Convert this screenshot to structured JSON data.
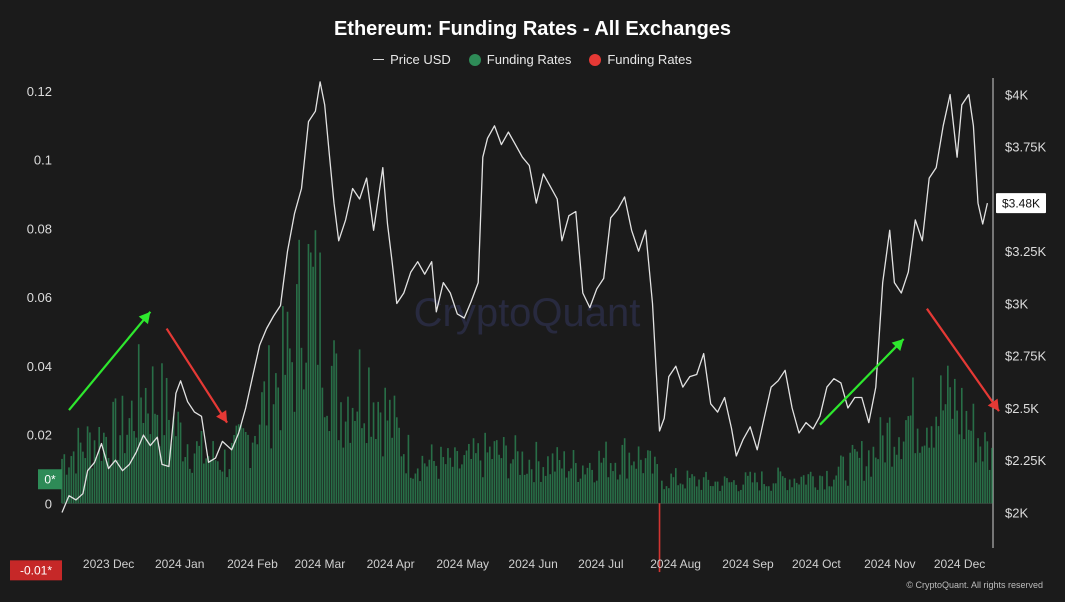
{
  "chart_data": {
    "type": "bar+line",
    "title": "Ethereum: Funding Rates - All Exchanges",
    "legend": [
      {
        "label": "Price USD",
        "kind": "line",
        "color": "#d9d9d9"
      },
      {
        "label": "Funding Rates",
        "kind": "dot",
        "color": "#2e8b57"
      },
      {
        "label": "Funding Rates",
        "kind": "dot",
        "color": "#e53935"
      }
    ],
    "x_axis": {
      "range": [
        "2023-11-22",
        "2024-12-26"
      ],
      "ticks": [
        {
          "date": "2023-12-01",
          "label": "2023 Dec"
        },
        {
          "date": "2024-01-01",
          "label": "2024 Jan"
        },
        {
          "date": "2024-02-01",
          "label": "2024 Feb"
        },
        {
          "date": "2024-03-01",
          "label": "2024 Mar"
        },
        {
          "date": "2024-04-01",
          "label": "2024 Apr"
        },
        {
          "date": "2024-05-01",
          "label": "2024 May"
        },
        {
          "date": "2024-06-01",
          "label": "2024 Jun"
        },
        {
          "date": "2024-07-01",
          "label": "2024 Jul"
        },
        {
          "date": "2024-08-01",
          "label": "2024 Aug"
        },
        {
          "date": "2024-09-01",
          "label": "2024 Sep"
        },
        {
          "date": "2024-10-01",
          "label": "2024 Oct"
        },
        {
          "date": "2024-11-01",
          "label": "2024 Nov"
        },
        {
          "date": "2024-12-01",
          "label": "2024 Dec"
        }
      ]
    },
    "y_left": {
      "range": [
        -0.013,
        0.122
      ],
      "ticks": [
        {
          "value": 0.12,
          "label": "0.12"
        },
        {
          "value": 0.1,
          "label": "0.1"
        },
        {
          "value": 0.08,
          "label": "0.08"
        },
        {
          "value": 0.06,
          "label": "0.06"
        },
        {
          "value": 0.04,
          "label": "0.04"
        },
        {
          "value": 0.02,
          "label": "0.02"
        },
        {
          "value": 0,
          "label": "0"
        }
      ],
      "badges": [
        {
          "value": 0.007,
          "label": "0*",
          "color": "#2e8b57"
        },
        {
          "value": -0.0195,
          "label": "-0.01*",
          "color": "#c62828"
        }
      ]
    },
    "y_right": {
      "range": [
        1830,
        4050
      ],
      "ticks": [
        {
          "value": 4000,
          "label": "$4K"
        },
        {
          "value": 3750,
          "label": "$3.75K"
        },
        {
          "value": 3500,
          "label": "$3.5K"
        },
        {
          "value": 3250,
          "label": "$3.25K"
        },
        {
          "value": 3000,
          "label": "$3K"
        },
        {
          "value": 2750,
          "label": "$2.75K"
        },
        {
          "value": 2500,
          "label": "$2.5K"
        },
        {
          "value": 2250,
          "label": "$2.25K"
        },
        {
          "value": 2000,
          "label": "$2K"
        }
      ],
      "current_price_label": "$3.48K",
      "current_price_value": 3480
    },
    "price_series": {
      "name": "Price USD",
      "points": [
        [
          "2023-11-22",
          2000
        ],
        [
          "2023-11-25",
          2080
        ],
        [
          "2023-11-28",
          2060
        ],
        [
          "2023-12-01",
          2090
        ],
        [
          "2023-12-03",
          2200
        ],
        [
          "2023-12-06",
          2240
        ],
        [
          "2023-12-09",
          2330
        ],
        [
          "2023-12-12",
          2210
        ],
        [
          "2023-12-15",
          2250
        ],
        [
          "2023-12-18",
          2200
        ],
        [
          "2023-12-21",
          2230
        ],
        [
          "2023-12-24",
          2290
        ],
        [
          "2023-12-27",
          2370
        ],
        [
          "2023-12-30",
          2320
        ],
        [
          "2024-01-02",
          2360
        ],
        [
          "2024-01-04",
          2230
        ],
        [
          "2024-01-07",
          2220
        ],
        [
          "2024-01-10",
          2570
        ],
        [
          "2024-01-12",
          2630
        ],
        [
          "2024-01-15",
          2530
        ],
        [
          "2024-01-18",
          2480
        ],
        [
          "2024-01-21",
          2460
        ],
        [
          "2024-01-24",
          2240
        ],
        [
          "2024-01-27",
          2260
        ],
        [
          "2024-01-30",
          2340
        ],
        [
          "2024-02-03",
          2300
        ],
        [
          "2024-02-06",
          2380
        ],
        [
          "2024-02-09",
          2500
        ],
        [
          "2024-02-12",
          2650
        ],
        [
          "2024-02-15",
          2800
        ],
        [
          "2024-02-18",
          2880
        ],
        [
          "2024-02-21",
          2940
        ],
        [
          "2024-02-24",
          2990
        ],
        [
          "2024-02-27",
          3250
        ],
        [
          "2024-03-01",
          3430
        ],
        [
          "2024-03-04",
          3550
        ],
        [
          "2024-03-07",
          3870
        ],
        [
          "2024-03-10",
          3920
        ],
        [
          "2024-03-12",
          4060
        ],
        [
          "2024-03-14",
          3950
        ],
        [
          "2024-03-16",
          3710
        ],
        [
          "2024-03-18",
          3480
        ],
        [
          "2024-03-20",
          3300
        ],
        [
          "2024-03-23",
          3400
        ],
        [
          "2024-03-26",
          3550
        ],
        [
          "2024-03-29",
          3500
        ],
        [
          "2024-04-01",
          3600
        ],
        [
          "2024-04-04",
          3350
        ],
        [
          "2024-04-08",
          3650
        ],
        [
          "2024-04-10",
          3380
        ],
        [
          "2024-04-12",
          3200
        ],
        [
          "2024-04-14",
          3000
        ],
        [
          "2024-04-17",
          3050
        ],
        [
          "2024-04-20",
          3150
        ],
        [
          "2024-04-23",
          3200
        ],
        [
          "2024-04-26",
          3140
        ],
        [
          "2024-04-29",
          3200
        ],
        [
          "2024-05-01",
          2960
        ],
        [
          "2024-05-04",
          3100
        ],
        [
          "2024-05-07",
          3050
        ],
        [
          "2024-05-10",
          2950
        ],
        [
          "2024-05-13",
          2930
        ],
        [
          "2024-05-16",
          3010
        ],
        [
          "2024-05-19",
          3100
        ],
        [
          "2024-05-21",
          3700
        ],
        [
          "2024-05-23",
          3790
        ],
        [
          "2024-05-26",
          3850
        ],
        [
          "2024-05-29",
          3760
        ],
        [
          "2024-06-01",
          3820
        ],
        [
          "2024-06-04",
          3760
        ],
        [
          "2024-06-07",
          3700
        ],
        [
          "2024-06-10",
          3660
        ],
        [
          "2024-06-13",
          3480
        ],
        [
          "2024-06-16",
          3620
        ],
        [
          "2024-06-19",
          3560
        ],
        [
          "2024-06-22",
          3500
        ],
        [
          "2024-06-24",
          3300
        ],
        [
          "2024-06-27",
          3420
        ],
        [
          "2024-06-30",
          3440
        ],
        [
          "2024-07-03",
          3050
        ],
        [
          "2024-07-06",
          2980
        ],
        [
          "2024-07-09",
          3070
        ],
        [
          "2024-07-12",
          3120
        ],
        [
          "2024-07-15",
          3410
        ],
        [
          "2024-07-18",
          3450
        ],
        [
          "2024-07-21",
          3510
        ],
        [
          "2024-07-24",
          3350
        ],
        [
          "2024-07-27",
          3250
        ],
        [
          "2024-07-30",
          3350
        ],
        [
          "2024-08-02",
          3000
        ],
        [
          "2024-08-05",
          2390
        ],
        [
          "2024-08-07",
          2450
        ],
        [
          "2024-08-09",
          2650
        ],
        [
          "2024-08-12",
          2700
        ],
        [
          "2024-08-15",
          2600
        ],
        [
          "2024-08-18",
          2650
        ],
        [
          "2024-08-21",
          2660
        ],
        [
          "2024-08-24",
          2760
        ],
        [
          "2024-08-27",
          2520
        ],
        [
          "2024-08-30",
          2480
        ],
        [
          "2024-09-02",
          2550
        ],
        [
          "2024-09-05",
          2400
        ],
        [
          "2024-09-07",
          2270
        ],
        [
          "2024-09-10",
          2350
        ],
        [
          "2024-09-13",
          2410
        ],
        [
          "2024-09-16",
          2300
        ],
        [
          "2024-09-19",
          2450
        ],
        [
          "2024-09-22",
          2600
        ],
        [
          "2024-09-25",
          2630
        ],
        [
          "2024-09-28",
          2680
        ],
        [
          "2024-10-01",
          2500
        ],
        [
          "2024-10-04",
          2380
        ],
        [
          "2024-10-07",
          2430
        ],
        [
          "2024-10-10",
          2400
        ],
        [
          "2024-10-13",
          2460
        ],
        [
          "2024-10-16",
          2600
        ],
        [
          "2024-10-19",
          2640
        ],
        [
          "2024-10-22",
          2620
        ],
        [
          "2024-10-25",
          2500
        ],
        [
          "2024-10-28",
          2550
        ],
        [
          "2024-10-31",
          2550
        ],
        [
          "2024-11-03",
          2430
        ],
        [
          "2024-11-06",
          2600
        ],
        [
          "2024-11-09",
          3100
        ],
        [
          "2024-11-12",
          3350
        ],
        [
          "2024-11-14",
          3100
        ],
        [
          "2024-11-17",
          3050
        ],
        [
          "2024-11-20",
          3150
        ],
        [
          "2024-11-23",
          3400
        ],
        [
          "2024-11-26",
          3300
        ],
        [
          "2024-11-29",
          3600
        ],
        [
          "2024-12-02",
          3650
        ],
        [
          "2024-12-05",
          3850
        ],
        [
          "2024-12-08",
          4000
        ],
        [
          "2024-12-11",
          3700
        ],
        [
          "2024-12-13",
          3950
        ],
        [
          "2024-12-16",
          4000
        ],
        [
          "2024-12-18",
          3850
        ],
        [
          "2024-12-20",
          3480
        ],
        [
          "2024-12-22",
          3380
        ],
        [
          "2024-12-24",
          3480
        ]
      ]
    },
    "funding_series": {
      "name": "Funding Rates",
      "interval_days": 1,
      "positive_color": "#2e8b57",
      "negative_color": "#e53935",
      "envelope": [
        [
          "2023-11-22",
          0.018
        ],
        [
          "2023-12-05",
          0.025
        ],
        [
          "2023-12-20",
          0.03
        ],
        [
          "2023-12-26",
          0.045
        ],
        [
          "2024-01-02",
          0.042
        ],
        [
          "2024-01-10",
          0.03
        ],
        [
          "2024-01-20",
          0.02
        ],
        [
          "2024-02-01",
          0.017
        ],
        [
          "2024-02-10",
          0.026
        ],
        [
          "2024-02-20",
          0.045
        ],
        [
          "2024-03-01",
          0.06
        ],
        [
          "2024-03-05",
          0.09
        ],
        [
          "2024-03-12",
          0.075
        ],
        [
          "2024-03-20",
          0.04
        ],
        [
          "2024-04-01",
          0.05
        ],
        [
          "2024-04-10",
          0.035
        ],
        [
          "2024-04-20",
          0.018
        ],
        [
          "2024-05-10",
          0.015
        ],
        [
          "2024-05-25",
          0.02
        ],
        [
          "2024-06-10",
          0.017
        ],
        [
          "2024-07-01",
          0.015
        ],
        [
          "2024-07-25",
          0.02
        ],
        [
          "2024-08-04",
          0.012
        ],
        [
          "2024-08-05",
          -0.02
        ],
        [
          "2024-08-06",
          0.01
        ],
        [
          "2024-09-01",
          0.008
        ],
        [
          "2024-10-01",
          0.01
        ],
        [
          "2024-10-20",
          0.012
        ],
        [
          "2024-11-05",
          0.02
        ],
        [
          "2024-11-15",
          0.032
        ],
        [
          "2024-12-01",
          0.038
        ],
        [
          "2024-12-10",
          0.04
        ],
        [
          "2024-12-26",
          0.018
        ]
      ]
    },
    "annotations": [
      {
        "type": "arrow",
        "color": "#2ee82e",
        "direction": "up",
        "from": [
          "2023-11-25",
          2490
        ],
        "to": [
          "2023-12-30",
          2960
        ]
      },
      {
        "type": "arrow",
        "color": "#e53935",
        "direction": "down",
        "from": [
          "2024-01-06",
          2880
        ],
        "to": [
          "2024-02-01",
          2430
        ]
      },
      {
        "type": "arrow",
        "color": "#2ee82e",
        "direction": "up",
        "from": [
          "2024-10-13",
          2420
        ],
        "to": [
          "2024-11-18",
          2830
        ]
      },
      {
        "type": "arrow",
        "color": "#e53935",
        "direction": "down",
        "from": [
          "2024-11-28",
          2975
        ],
        "to": [
          "2024-12-29",
          2485
        ]
      }
    ],
    "watermark": "CryptoQuant",
    "copyright": "© CryptoQuant. All rights reserved"
  }
}
